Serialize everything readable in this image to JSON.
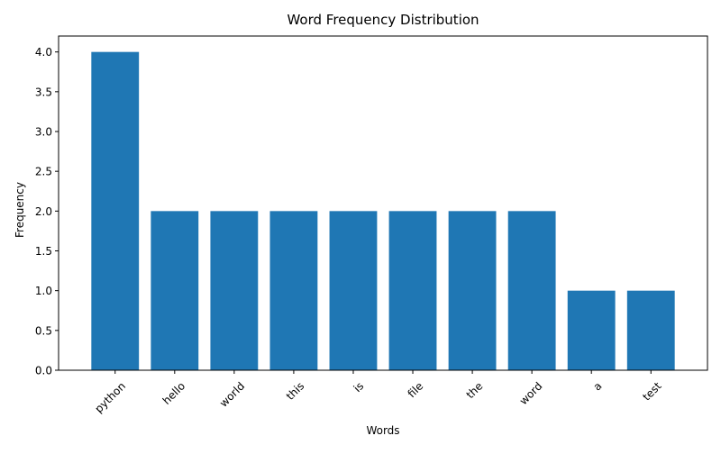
{
  "chart_data": {
    "type": "bar",
    "title": "Word Frequency Distribution",
    "xlabel": "Words",
    "ylabel": "Frequency",
    "categories": [
      "python",
      "hello",
      "world",
      "this",
      "is",
      "file",
      "the",
      "word",
      "a",
      "test"
    ],
    "values": [
      4,
      2,
      2,
      2,
      2,
      2,
      2,
      2,
      1,
      1
    ],
    "ylim": [
      0,
      4.2
    ],
    "yticks": [
      "0.0",
      "0.5",
      "1.0",
      "1.5",
      "2.0",
      "2.5",
      "3.0",
      "3.5",
      "4.0"
    ],
    "bar_color": "#1f77b4",
    "grid": false,
    "legend": "none",
    "xtick_rotation_deg": 45
  }
}
